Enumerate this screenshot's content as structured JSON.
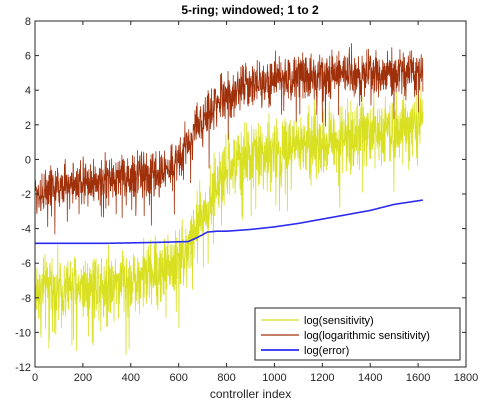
{
  "chart_data": {
    "type": "line",
    "title": "5-ring; windowed; 1 to 2",
    "xlabel": "controller index",
    "ylabel": "",
    "xlim": [
      0,
      1800
    ],
    "ylim": [
      -12,
      8
    ],
    "xticks": [
      0,
      200,
      400,
      600,
      800,
      1000,
      1200,
      1400,
      1600,
      1800
    ],
    "yticks": [
      -12,
      -10,
      -8,
      -6,
      -4,
      -2,
      0,
      2,
      4,
      6,
      8
    ],
    "grid": false,
    "legend_position": "bottom-right",
    "n_points": 1620,
    "series": [
      {
        "name": "log(sensitivity)",
        "color": "#d9e021",
        "knots_x": [
          1,
          100,
          200,
          300,
          400,
          500,
          580,
          640,
          700,
          760,
          820,
          900,
          1000,
          1100,
          1200,
          1300,
          1400,
          1500,
          1620
        ],
        "knots_y": [
          -7.5,
          -7.5,
          -7.3,
          -7.0,
          -7.0,
          -6.5,
          -6.0,
          -5.0,
          -3.3,
          -1.5,
          -0.3,
          0.2,
          0.5,
          0.8,
          1.1,
          1.4,
          1.7,
          1.9,
          2.1
        ],
        "noise_amplitude": 2.8
      },
      {
        "name": "log(logarithmic sensitivity)",
        "color": "#a0300a",
        "knots_x": [
          1,
          100,
          200,
          300,
          400,
          500,
          560,
          620,
          680,
          740,
          800,
          900,
          1000,
          1100,
          1200,
          1300,
          1400,
          1500,
          1620
        ],
        "knots_y": [
          -2.0,
          -1.6,
          -1.3,
          -1.2,
          -1.0,
          -0.9,
          -0.5,
          0.5,
          1.8,
          3.0,
          3.8,
          4.3,
          4.6,
          4.8,
          4.9,
          5.0,
          5.0,
          5.0,
          5.0
        ],
        "noise_amplitude": 1.9
      },
      {
        "name": "log(error)",
        "color": "#2c2cf0",
        "knots_x": [
          1,
          300,
          500,
          640,
          680,
          720,
          760,
          800,
          900,
          1000,
          1100,
          1200,
          1300,
          1400,
          1500,
          1620
        ],
        "knots_y": [
          -4.85,
          -4.85,
          -4.8,
          -4.75,
          -4.5,
          -4.2,
          -4.15,
          -4.15,
          -4.05,
          -3.9,
          -3.7,
          -3.45,
          -3.2,
          -2.95,
          -2.6,
          -2.35
        ],
        "noise_amplitude": 0
      }
    ]
  }
}
